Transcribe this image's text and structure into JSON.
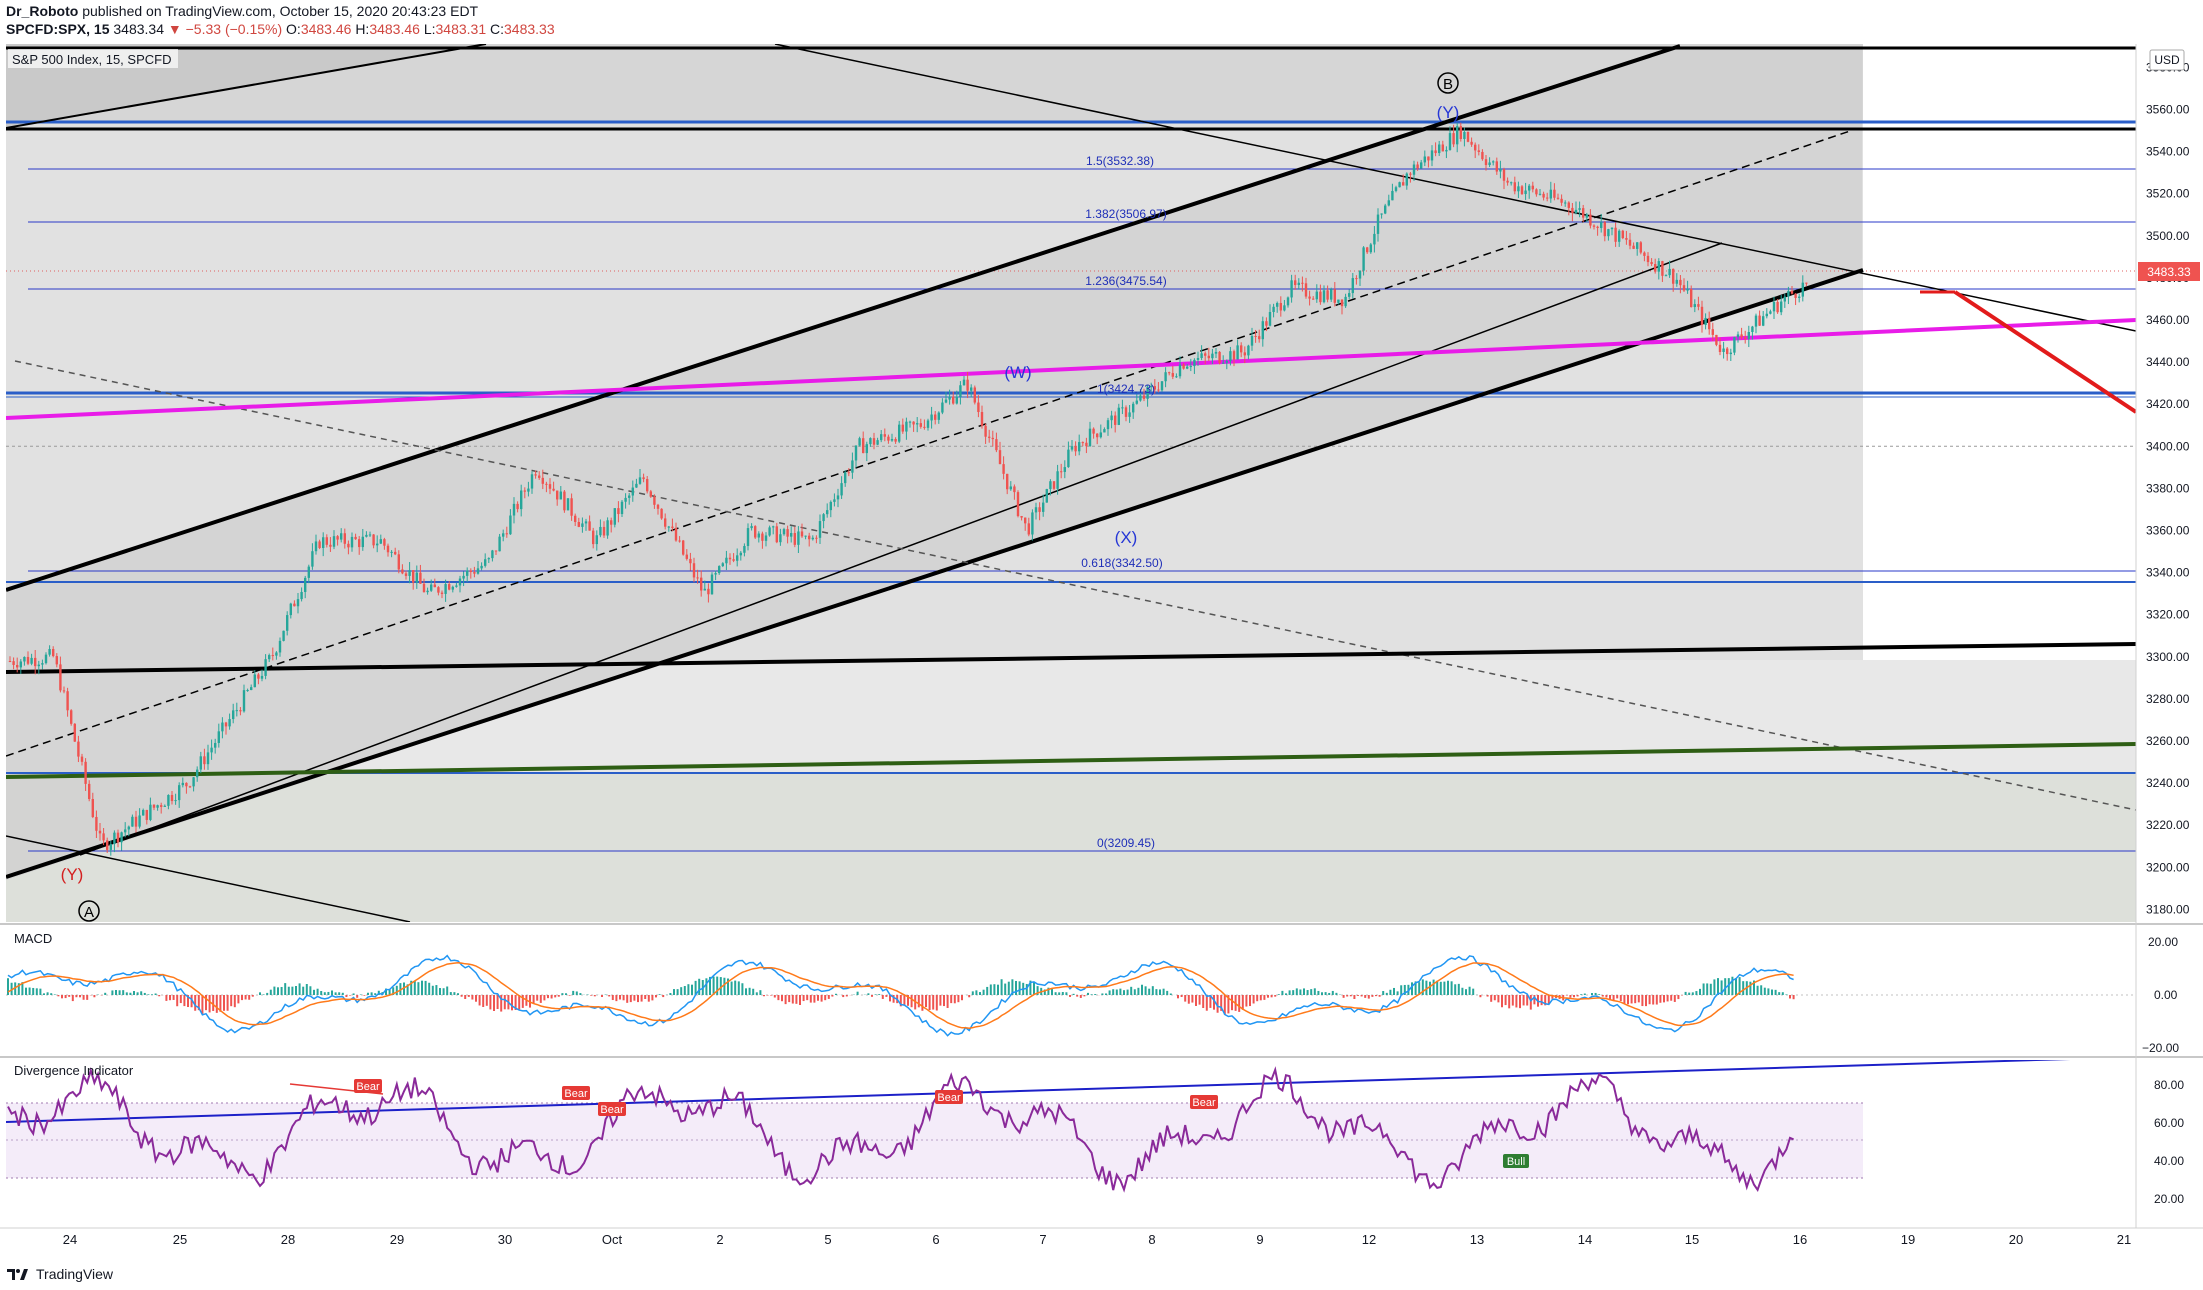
{
  "header": {
    "author": "Dr_Roboto",
    "published": "published on TradingView.com, October 15, 2020 20:43:23 EDT",
    "symbol": "SPCFD:SPX, 15",
    "last": "3483.34",
    "change": "−5.33 (−0.15%)",
    "open_label": "O:",
    "open": "3483.46",
    "high_label": "H:",
    "high": "3483.46",
    "low_label": "L:",
    "low": "3483.31",
    "close_label": "C:",
    "close": "3483.33"
  },
  "main_pane": {
    "title": "S&P 500 Index, 15, SPCFD",
    "currency": "USD",
    "price_ticks": [
      "3580.00",
      "3560.00",
      "3540.00",
      "3520.00",
      "3500.00",
      "3480.00",
      "3460.00",
      "3440.00",
      "3420.00",
      "3400.00",
      "3380.00",
      "3360.00",
      "3340.00",
      "3320.00",
      "3300.00",
      "3280.00",
      "3260.00",
      "3240.00",
      "3220.00",
      "3200.00",
      "3180.00"
    ],
    "price_tag": "3483.33",
    "fib_labels": [
      "1.5(3532.38)",
      "1.382(3506.97)",
      "1.236(3475.54)",
      "1(3424.73)",
      "0.618(3342.50)",
      "0(3209.45)"
    ],
    "wave_labels": [
      "(Y)",
      "(W)",
      "(X)",
      "(Y)"
    ],
    "circle_labels": [
      "B",
      "A"
    ]
  },
  "macd_pane": {
    "title": "MACD",
    "ticks": [
      "20.00",
      "0.00",
      "−20.00"
    ]
  },
  "div_pane": {
    "title": "Divergence Indicator",
    "ticks": [
      "80.00",
      "60.00",
      "40.00",
      "20.00"
    ],
    "signals": [
      "Bear",
      "Bear",
      "Bear",
      "Bear",
      "Bear",
      "Bull"
    ]
  },
  "time_axis": {
    "labels": [
      "24",
      "25",
      "28",
      "29",
      "30",
      "Oct",
      "2",
      "5",
      "6",
      "7",
      "8",
      "9",
      "12",
      "13",
      "14",
      "15",
      "16",
      "19",
      "20",
      "21"
    ]
  },
  "footer": {
    "brand": "TradingView"
  },
  "colors": {
    "up": "#26a69a",
    "down": "#ef5350",
    "magenta": "#e81ce8",
    "fib_blue": "#2a39c8",
    "green_line": "#2e5e14",
    "rsi": "#8a2a9a",
    "red_projection": "#e21b1b"
  },
  "chart_data": {
    "type": "candlestick",
    "title": "S&P 500 Index, 15, SPCFD",
    "ylim": [
      3175,
      3600
    ],
    "x": [
      "24",
      "25",
      "28",
      "29",
      "30",
      "Oct",
      "2",
      "5",
      "6",
      "7",
      "8",
      "9",
      "12",
      "13",
      "14",
      "15",
      "16",
      "19",
      "20",
      "21"
    ],
    "anchors": [
      {
        "date": "24",
        "close": 3300
      },
      {
        "date": "24",
        "close": 3210
      },
      {
        "date": "25",
        "close": 3240
      },
      {
        "date": "28",
        "close": 3300
      },
      {
        "date": "28",
        "close": 3355
      },
      {
        "date": "29",
        "close": 3355
      },
      {
        "date": "29",
        "close": 3330
      },
      {
        "date": "30",
        "close": 3345
      },
      {
        "date": "30",
        "close": 3390
      },
      {
        "date": "Oct",
        "close": 3355
      },
      {
        "date": "Oct",
        "close": 3385
      },
      {
        "date": "2",
        "close": 3330
      },
      {
        "date": "2",
        "close": 3360
      },
      {
        "date": "5",
        "close": 3355
      },
      {
        "date": "5",
        "close": 3400
      },
      {
        "date": "6",
        "close": 3410
      },
      {
        "date": "6",
        "close": 3430
      },
      {
        "date": "7",
        "close": 3360
      },
      {
        "date": "7",
        "close": 3400
      },
      {
        "date": "8",
        "close": 3420
      },
      {
        "date": "8",
        "close": 3440
      },
      {
        "date": "9",
        "close": 3445
      },
      {
        "date": "9",
        "close": 3475
      },
      {
        "date": "12",
        "close": 3470
      },
      {
        "date": "12",
        "close": 3505
      },
      {
        "date": "12",
        "close": 3530
      },
      {
        "date": "13",
        "close": 3550
      },
      {
        "date": "13",
        "close": 3525
      },
      {
        "date": "14",
        "close": 3515
      },
      {
        "date": "14",
        "close": 3500
      },
      {
        "date": "15",
        "close": 3480
      },
      {
        "date": "15",
        "close": 3445
      },
      {
        "date": "16",
        "close": 3470
      },
      {
        "date": "16",
        "close": 3485
      }
    ],
    "macd_ylim": [
      -25,
      30
    ],
    "rsi_ylim": [
      5,
      95
    ]
  }
}
